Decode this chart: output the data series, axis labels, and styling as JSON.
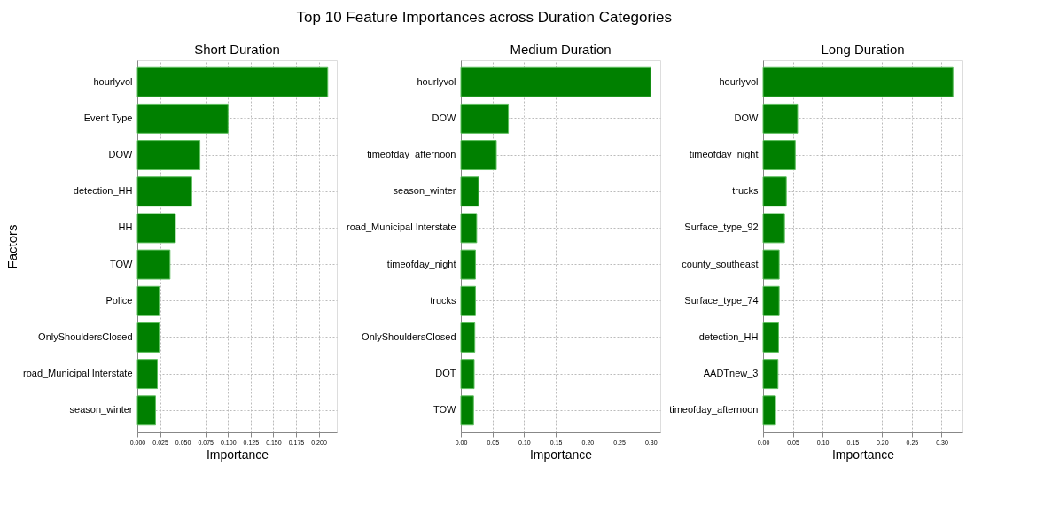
{
  "chart_data": [
    {
      "type": "bar",
      "orientation": "horizontal",
      "title": "Short Duration",
      "xlabel": "Importance",
      "ylabel": "Factors",
      "annotations": [
        "Top 10 Feature Importances across Duration Categories"
      ],
      "grid": true,
      "color": "#008000",
      "categories": [
        "hourlyvol",
        "Event Type",
        "DOW",
        "detection_HH",
        "HH",
        "TOW",
        "Police",
        "OnlyShouldersClosed",
        "road_Municipal Interstate",
        "season_winter"
      ],
      "values": [
        0.21,
        0.1,
        0.069,
        0.06,
        0.042,
        0.036,
        0.024,
        0.024,
        0.022,
        0.02
      ],
      "xlim": [
        0,
        0.22
      ],
      "xticks": [
        {
          "value": 0,
          "label": "0.000"
        },
        {
          "value": 0.025,
          "label": "0.025"
        },
        {
          "value": 0.05,
          "label": "0.050"
        },
        {
          "value": 0.075,
          "label": "0.075"
        },
        {
          "value": 0.1,
          "label": "0.100"
        },
        {
          "value": 0.125,
          "label": "0.125"
        },
        {
          "value": 0.15,
          "label": "0.150"
        },
        {
          "value": 0.175,
          "label": "0.175"
        },
        {
          "value": 0.2,
          "label": "0.200"
        }
      ]
    },
    {
      "type": "bar",
      "orientation": "horizontal",
      "title": "Medium Duration",
      "xlabel": "Importance",
      "grid": true,
      "color": "#008000",
      "categories": [
        "hourlyvol",
        "DOW",
        "timeofday_afternoon",
        "season_winter",
        "road_Municipal Interstate",
        "timeofday_night",
        "trucks",
        "OnlyShouldersClosed",
        "DOT",
        "TOW"
      ],
      "values": [
        0.3,
        0.075,
        0.056,
        0.028,
        0.025,
        0.023,
        0.023,
        0.022,
        0.021,
        0.02
      ],
      "xlim": [
        0,
        0.315
      ],
      "xticks": [
        {
          "value": 0,
          "label": "0.00"
        },
        {
          "value": 0.05,
          "label": "0.05"
        },
        {
          "value": 0.1,
          "label": "0.10"
        },
        {
          "value": 0.15,
          "label": "0.15"
        },
        {
          "value": 0.2,
          "label": "0.20"
        },
        {
          "value": 0.25,
          "label": "0.25"
        },
        {
          "value": 0.3,
          "label": "0.30"
        }
      ]
    },
    {
      "type": "bar",
      "orientation": "horizontal",
      "title": "Long Duration",
      "xlabel": "Importance",
      "grid": true,
      "color": "#008000",
      "categories": [
        "hourlyvol",
        "DOW",
        "timeofday_night",
        "trucks",
        "Surface_type_92",
        "county_southeast",
        "Surface_type_74",
        "detection_HH",
        "AADTnew_3",
        "timeofday_afternoon"
      ],
      "values": [
        0.319,
        0.058,
        0.054,
        0.039,
        0.036,
        0.027,
        0.027,
        0.026,
        0.025,
        0.021
      ],
      "xlim": [
        0,
        0.335
      ],
      "xticks": [
        {
          "value": 0,
          "label": "0.00"
        },
        {
          "value": 0.05,
          "label": "0.05"
        },
        {
          "value": 0.1,
          "label": "0.10"
        },
        {
          "value": 0.15,
          "label": "0.15"
        },
        {
          "value": 0.2,
          "label": "0.20"
        },
        {
          "value": 0.25,
          "label": "0.25"
        },
        {
          "value": 0.3,
          "label": "0.30"
        }
      ]
    }
  ]
}
